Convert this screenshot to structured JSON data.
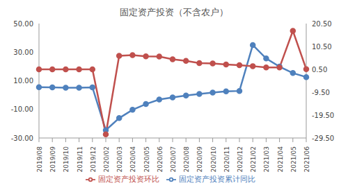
{
  "chart_data": {
    "type": "line",
    "title": "固定资产投资（不含农户）",
    "categories": [
      "2019/08",
      "2019/09",
      "2019/10",
      "2019/11",
      "2019/12",
      "2020/02",
      "2020/03",
      "2020/04",
      "2020/05",
      "2020/06",
      "2020/07",
      "2020/08",
      "2020/09",
      "2020/10",
      "2020/11",
      "2020/12",
      "2021/02",
      "2021/03",
      "2021/04",
      "2021/05",
      "2021/06"
    ],
    "series": [
      {
        "name": "固定资产投资累计同比",
        "color": "#4f81bd",
        "marker": "circle",
        "values": [
          5.5,
          5.4,
          5.2,
          5.2,
          5.4,
          -24.5,
          -16.1,
          -10.3,
          -6.3,
          -3.1,
          -1.6,
          -0.3,
          0.8,
          1.8,
          2.6,
          2.9,
          35.0,
          25.6,
          19.9,
          15.4,
          12.6
        ]
      },
      {
        "name": "固定资产投资环比",
        "color": "#c0504d",
        "marker": "circle",
        "axis": "y2",
        "values": [
          0.5,
          0.5,
          0.5,
          0.5,
          0.5,
          -27.9,
          6.4,
          6.7,
          6.2,
          6.1,
          4.9,
          4.2,
          3.2,
          3.1,
          2.6,
          2.3,
          1.9,
          1.3,
          1.3,
          17.3,
          0.6
        ]
      }
    ],
    "ylim": [
      -30,
      50
    ],
    "yticks": [
      {
        "value": -30,
        "label": "-30.00"
      },
      {
        "value": -10,
        "label": "-10.00"
      },
      {
        "value": 10,
        "label": "10.00"
      },
      {
        "value": 30,
        "label": "30.00"
      },
      {
        "value": 50,
        "label": "50.00"
      }
    ],
    "y2lim": [
      -29.5,
      20.5
    ],
    "y2ticks": [
      {
        "value": -29.5,
        "label": "-29.50"
      },
      {
        "value": -19.5,
        "label": "-19.50"
      },
      {
        "value": -9.5,
        "label": "-9.50"
      },
      {
        "value": 0.5,
        "label": "0.50"
      },
      {
        "value": 10.5,
        "label": "10.50"
      },
      {
        "value": 20.5,
        "label": "20.50"
      }
    ],
    "grid": false,
    "legend": "bottom"
  }
}
